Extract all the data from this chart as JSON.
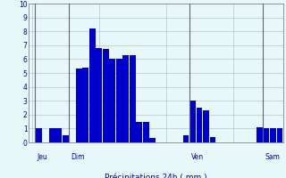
{
  "values": [
    0,
    1,
    0,
    1,
    1,
    0.5,
    0,
    5.3,
    5.4,
    8.2,
    6.8,
    6.7,
    6.0,
    6.0,
    6.3,
    6.3,
    1.5,
    1.5,
    0.3,
    0,
    0,
    0,
    0,
    0.5,
    3.0,
    2.5,
    2.3,
    0.4,
    0,
    0,
    0,
    0,
    0,
    0,
    1.1,
    1.0,
    1.0,
    1.0
  ],
  "day_labels": [
    "Jeu",
    "Dim",
    "Ven",
    "Sam"
  ],
  "day_positions": [
    0.5,
    5.5,
    23.5,
    34.5
  ],
  "xlabel": "Précipitations 24h ( mm )",
  "ylim": [
    0,
    10
  ],
  "yticks": [
    0,
    1,
    2,
    3,
    4,
    5,
    6,
    7,
    8,
    9,
    10
  ],
  "bar_color": "#0000cc",
  "bg_color": "#e8f8f8",
  "grid_color": "#b0c8c8",
  "label_color": "#0000aa",
  "axis_line_color": "#888888",
  "day_line_color": "#666666"
}
